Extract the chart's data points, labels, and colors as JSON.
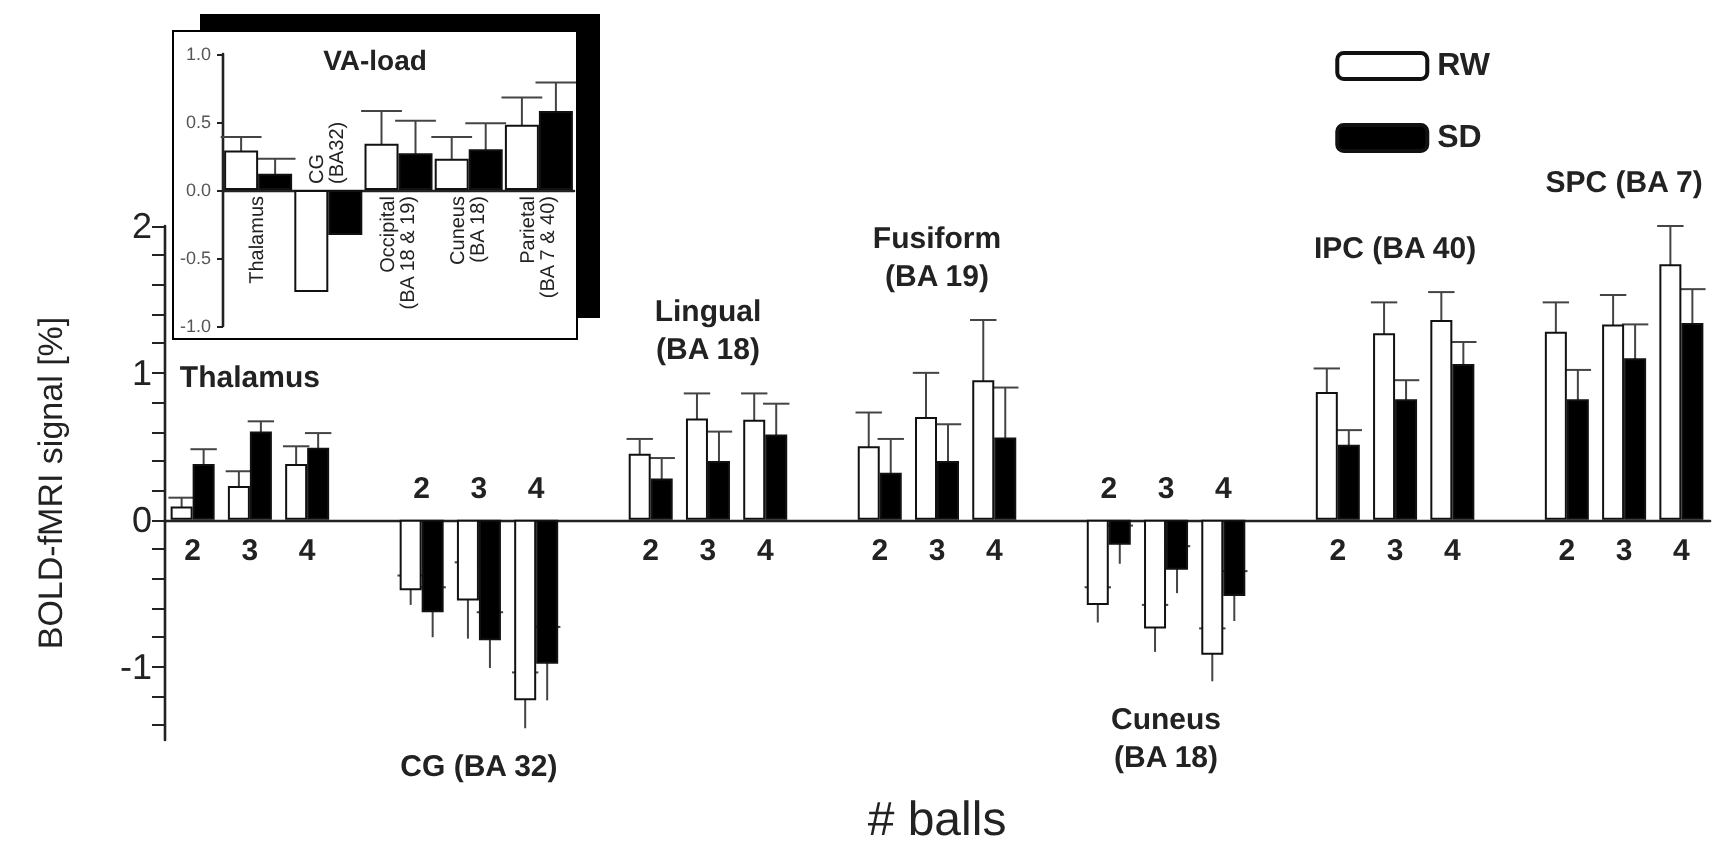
{
  "chart_data": [
    {
      "type": "bar",
      "xlabel": "# balls",
      "ylabel": "BOLD-fMRI signal [%]",
      "categories": [
        "2",
        "3",
        "4",
        null,
        "2",
        "3",
        "4",
        null,
        "2",
        "3",
        "4",
        null,
        "2",
        "3",
        "4",
        null,
        "2",
        "3",
        "4",
        null,
        "2",
        "3",
        "4",
        null,
        "2",
        "3",
        "4"
      ],
      "series": [
        {
          "name": "RW",
          "color": "#ffffff",
          "values": [
            0.09,
            0.23,
            0.38,
            null,
            -0.48,
            -0.55,
            -1.23,
            null,
            0.45,
            0.69,
            0.68,
            null,
            0.5,
            0.7,
            0.95,
            null,
            -0.58,
            -0.74,
            -0.92,
            null,
            0.87,
            1.27,
            1.36,
            null,
            1.28,
            1.33,
            1.74
          ],
          "errors": [
            0.06,
            0.1,
            0.12,
            null,
            0.1,
            0.26,
            0.19,
            null,
            0.1,
            0.17,
            0.18,
            null,
            0.23,
            0.3,
            0.41,
            null,
            0.12,
            0.16,
            0.18,
            null,
            0.16,
            0.21,
            0.19,
            null,
            0.2,
            0.2,
            0.26
          ]
        },
        {
          "name": "SD",
          "color": "#000000",
          "values": [
            0.38,
            0.6,
            0.49,
            null,
            -0.63,
            -0.82,
            -0.98,
            null,
            0.28,
            0.4,
            0.58,
            null,
            0.32,
            0.4,
            0.56,
            null,
            -0.17,
            -0.34,
            -0.52,
            null,
            0.51,
            0.82,
            1.06,
            null,
            0.82,
            1.1,
            1.34
          ],
          "errors": [
            0.1,
            0.07,
            0.1,
            null,
            0.17,
            0.19,
            0.25,
            null,
            0.14,
            0.2,
            0.21,
            null,
            0.23,
            0.25,
            0.34,
            null,
            0.13,
            0.16,
            0.17,
            null,
            0.1,
            0.13,
            0.15,
            null,
            0.2,
            0.23,
            0.23
          ]
        }
      ],
      "ylim": [
        -1.5,
        2
      ],
      "yticks": [
        {
          "value": -1.4,
          "label": null
        },
        {
          "value": -1.2,
          "label": null
        },
        -1,
        {
          "value": -0.8,
          "label": null
        },
        {
          "value": -0.6,
          "label": null
        },
        {
          "value": -0.4,
          "label": null
        },
        {
          "value": -0.2,
          "label": null
        },
        0,
        {
          "value": 0.2,
          "label": null
        },
        {
          "value": 0.4,
          "label": null
        },
        {
          "value": 0.6,
          "label": null
        },
        {
          "value": 0.8,
          "label": null
        },
        1,
        {
          "value": 1.2,
          "label": null
        },
        {
          "value": 1.4,
          "label": null
        },
        {
          "value": 1.6,
          "label": null
        },
        {
          "value": 1.8,
          "label": null
        },
        2
      ],
      "annotations": [
        "Thalamus",
        "CG (BA 32)",
        "Lingual\n(BA 18)",
        "Fusiform\n(BA 19)",
        "Cuneus\n(BA 18)",
        "IPC (BA 40)",
        "SPC (BA 7)"
      ],
      "legend": "top right",
      "grid": false
    },
    {
      "type": "bar",
      "title": "VA-load",
      "categories": [
        "Thalamus",
        "CG (BA32)",
        "Occipital (BA 18 & 19)",
        "Cuneus (BA 18)",
        "Parietal (BA 7 & 40)"
      ],
      "series": [
        {
          "color": "#ffffff",
          "values": [
            0.29,
            -0.75,
            0.34,
            0.23,
            0.48
          ],
          "errors": [
            0.1,
            null,
            0.24,
            0.16,
            0.2
          ]
        },
        {
          "color": "#000000",
          "values": [
            0.12,
            -0.33,
            0.27,
            0.3,
            0.58
          ],
          "errors": [
            0.11,
            null,
            0.24,
            0.19,
            0.21
          ]
        }
      ],
      "ylim": [
        -1,
        1
      ],
      "yticks": [
        {
          "value": -1,
          "label": "-1.0"
        },
        {
          "value": -0.5,
          "label": "-0.5"
        },
        {
          "value": 0,
          "label": "0.0"
        },
        {
          "value": 0.5,
          "label": "0.5"
        },
        {
          "value": 1,
          "label": "1.0"
        }
      ],
      "legend": false,
      "grid": false
    }
  ]
}
